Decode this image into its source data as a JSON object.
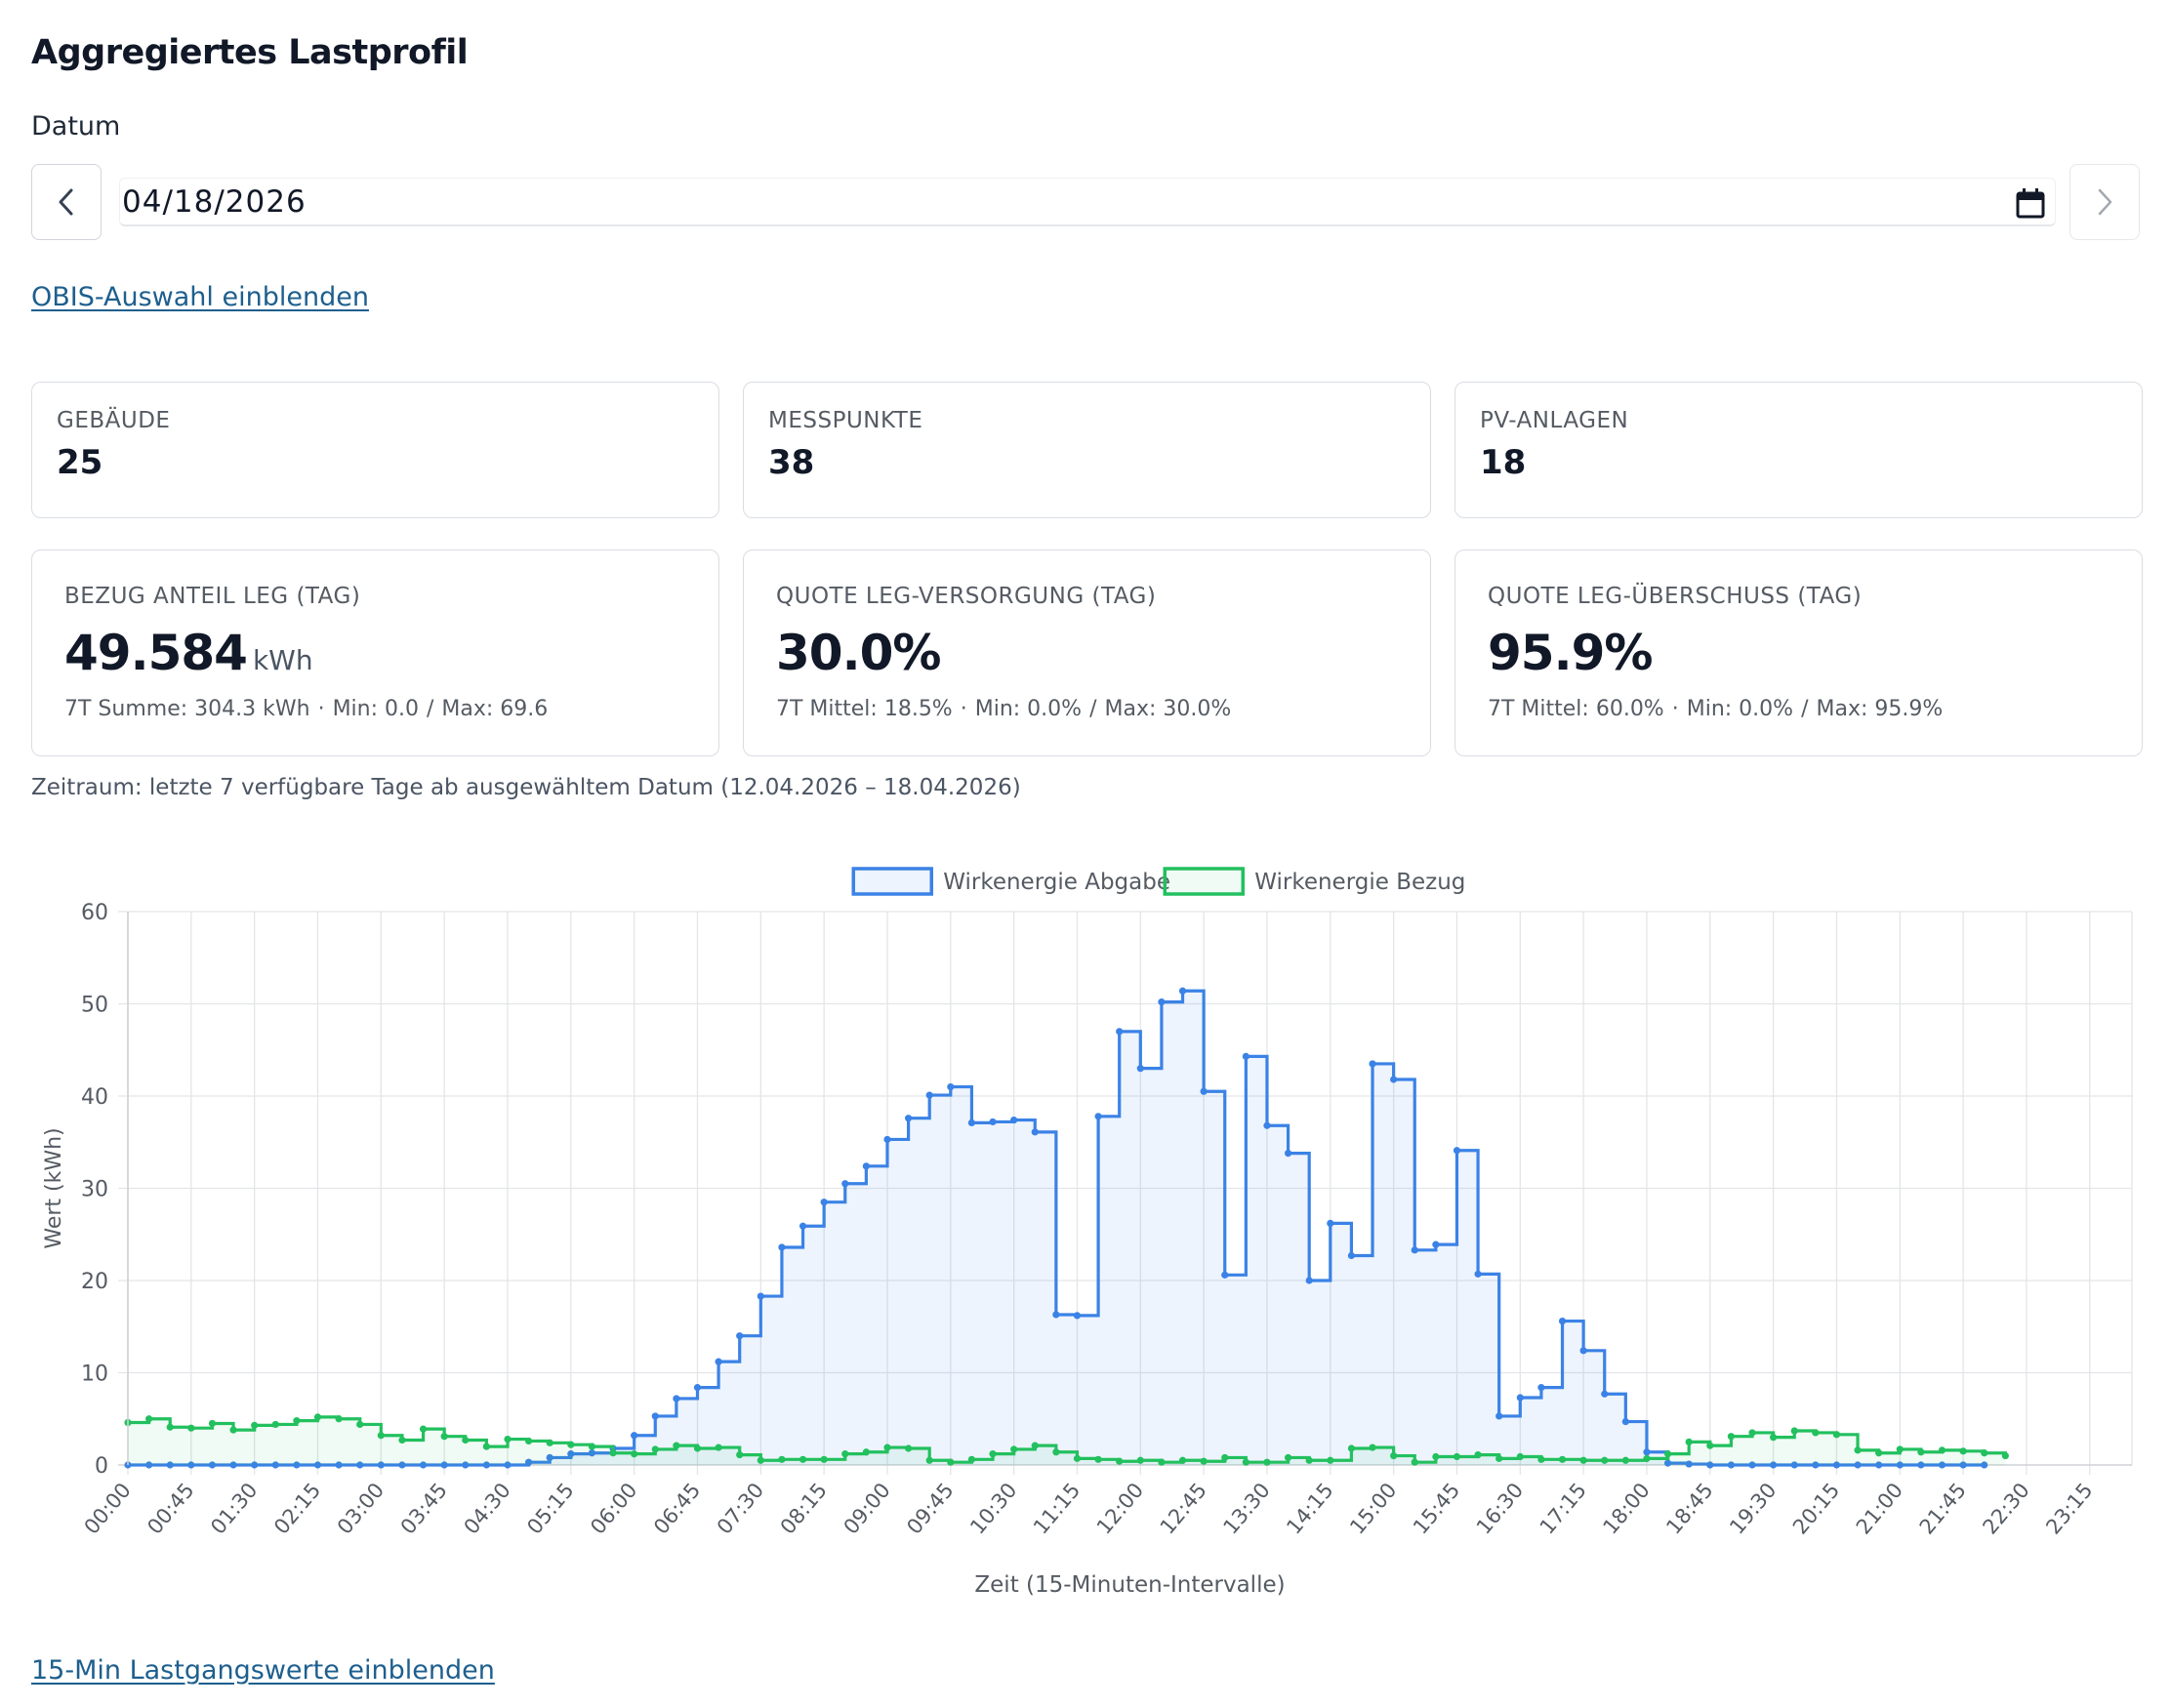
{
  "header": {
    "title": "Aggregiertes Lastprofil"
  },
  "date_field": {
    "label": "Datum",
    "value": "04/18/2026"
  },
  "links": {
    "obis_toggle": "OBIS-Auswahl einblenden",
    "lastgang_toggle": "15-Min Lastgangswerte einblenden"
  },
  "stats": [
    {
      "label": "GEBÄUDE",
      "value": "25"
    },
    {
      "label": "MESSPUNKTE",
      "value": "38"
    },
    {
      "label": "PV-ANLAGEN",
      "value": "18"
    }
  ],
  "kpis": [
    {
      "label": "BEZUG ANTEIL LEG (TAG)",
      "value": "49.584",
      "unit": "kWh",
      "sub_a": "7T Summe: 304.3 kWh",
      "sub_b": "Min: 0.0",
      "sub_c": "Max: 69.6"
    },
    {
      "label": "QUOTE LEG-VERSORGUNG (TAG)",
      "value": "30.0%",
      "unit": "",
      "sub_a": "7T Mittel: 18.5%",
      "sub_b": "Min: 0.0%",
      "sub_c": "Max: 30.0%"
    },
    {
      "label": "QUOTE LEG-ÜBERSCHUSS (TAG)",
      "value": "95.9%",
      "unit": "",
      "sub_a": "7T Mittel: 60.0%",
      "sub_b": "Min: 0.0%",
      "sub_c": "Max: 95.9%"
    }
  ],
  "period_text": "Zeitraum: letzte 7 verfügbare Tage ab ausgewähltem Datum (12.04.2026 – 18.04.2026)",
  "colors": {
    "abgabe": "#3b82e6",
    "bezug": "#22c05e",
    "link": "#1e5f8e"
  },
  "chart_data": {
    "type": "line",
    "step": true,
    "xlabel": "Zeit (15-Minuten-Intervalle)",
    "ylabel": "Wert (kWh)",
    "ylim": [
      0,
      60
    ],
    "yticks": [
      0,
      10,
      20,
      30,
      40,
      50,
      60
    ],
    "grid": true,
    "legend_position": "top",
    "x_labels": [
      "00:00",
      "00:45",
      "01:30",
      "02:15",
      "03:00",
      "03:45",
      "04:30",
      "05:15",
      "06:00",
      "06:45",
      "07:30",
      "08:15",
      "09:00",
      "09:45",
      "10:30",
      "11:15",
      "12:00",
      "12:45",
      "13:30",
      "14:15",
      "15:00",
      "15:45",
      "16:30",
      "17:15",
      "18:00",
      "18:45",
      "19:30",
      "20:15",
      "21:00",
      "21:45",
      "22:30",
      "23:15"
    ],
    "series": [
      {
        "name": "Wirkenergie Abgabe",
        "color": "#3b82e6",
        "values": [
          0,
          0,
          0,
          0,
          0,
          0,
          0,
          0,
          0,
          0,
          0,
          0,
          0,
          0,
          0,
          0,
          0,
          0,
          0,
          0.3,
          0.8,
          1.2,
          1.3,
          1.8,
          3.2,
          5.3,
          7.2,
          8.4,
          11.2,
          14,
          18.3,
          23.6,
          25.9,
          28.5,
          30.5,
          32.4,
          35.3,
          37.6,
          40.1,
          41,
          37.1,
          37.2,
          37.4,
          36.1,
          16.3,
          16.2,
          37.8,
          47,
          43,
          50.2,
          51.4,
          40.5,
          20.6,
          44.3,
          36.8,
          33.8,
          20,
          26.2,
          22.7,
          43.5,
          41.8,
          23.3,
          23.9,
          34.1,
          20.7,
          5.3,
          7.3,
          8.4,
          15.6,
          12.4,
          7.7,
          4.7,
          1.4,
          0.2,
          0.1,
          0,
          0,
          0,
          0,
          0,
          0,
          0,
          0,
          0,
          0,
          0,
          0,
          0,
          0
        ]
      },
      {
        "name": "Wirkenergie Bezug",
        "color": "#22c05e",
        "values": [
          4.6,
          5,
          4.1,
          4,
          4.5,
          3.8,
          4.3,
          4.4,
          4.8,
          5.2,
          5,
          4.4,
          3.2,
          2.7,
          3.9,
          3.1,
          2.7,
          2,
          2.8,
          2.6,
          2.4,
          2.2,
          2,
          1.3,
          1.2,
          1.7,
          2.1,
          1.8,
          1.9,
          1.1,
          0.5,
          0.6,
          0.6,
          0.6,
          1.2,
          1.4,
          1.9,
          1.8,
          0.5,
          0.3,
          0.6,
          1.2,
          1.7,
          2.1,
          1.4,
          0.7,
          0.6,
          0.4,
          0.5,
          0.3,
          0.5,
          0.4,
          0.8,
          0.3,
          0.3,
          0.8,
          0.5,
          0.5,
          1.8,
          1.9,
          1,
          0.3,
          0.9,
          0.9,
          1.1,
          0.7,
          0.9,
          0.6,
          0.6,
          0.5,
          0.5,
          0.5,
          0.7,
          1.2,
          2.5,
          2.1,
          3.1,
          3.5,
          3,
          3.7,
          3.5,
          3.3,
          1.6,
          1.3,
          1.7,
          1.4,
          1.6,
          1.5,
          1.3,
          1
        ]
      }
    ]
  }
}
